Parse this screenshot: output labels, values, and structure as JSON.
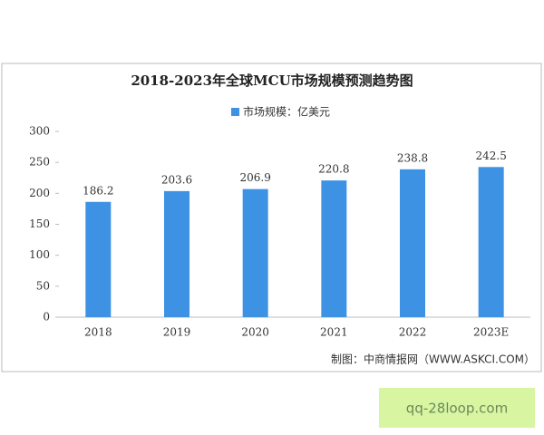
{
  "chart_data": {
    "type": "bar",
    "title": "2018-2023年全球MCU市场规模预测趋势图",
    "categories": [
      "2018",
      "2019",
      "2020",
      "2021",
      "2022",
      "2023E"
    ],
    "series": [
      {
        "name": "市场规模：亿美元",
        "color": "#3d92e3",
        "values": [
          186.2,
          203.6,
          206.9,
          220.8,
          238.8,
          242.5
        ]
      }
    ],
    "ylim": [
      0,
      300
    ],
    "yticks": [
      0,
      50,
      100,
      150,
      200,
      250,
      300
    ],
    "grid": false,
    "source": "制图：中商情报网（WWW.ASKCI.COM）"
  },
  "badge": "qq-28loop.com"
}
